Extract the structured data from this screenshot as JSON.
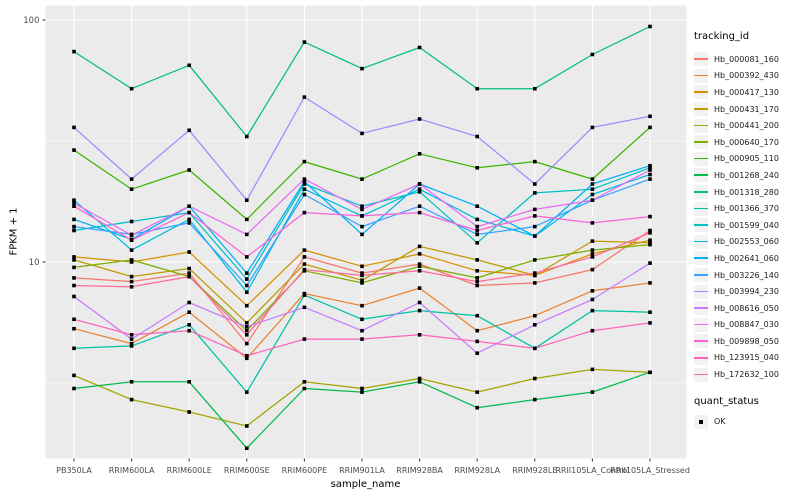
{
  "figure": {
    "legend": {
      "tracking_title": "tracking_id",
      "quant_title": "quant_status",
      "quant_items": [
        {
          "label": "OK",
          "marker": "black-square-icon"
        }
      ]
    },
    "colors": {
      "panel_bg": "#EBEBEB",
      "gridline": "#FFFFFF",
      "legend_key_bg": "#F2F2F2",
      "point": "#000000",
      "axis_tick_text": "#4D4D4D",
      "axis_title_text": "#000000"
    }
  },
  "chart_data": {
    "type": "line",
    "title": "",
    "xlabel": "sample_name",
    "ylabel": "FPKM + 1",
    "y_scale": "log10",
    "ylim": [
      1.55,
      114
    ],
    "y_major_ticks": [
      100,
      10
    ],
    "y_minor_ticks": [
      31.62,
      3.162
    ],
    "grid": true,
    "legend_position": "right",
    "point_marker": "black-square",
    "quant_status_values": [
      "OK"
    ],
    "categories": [
      "PB350LA",
      "RRIM600LA",
      "RRIM600LE",
      "RRIM600SE",
      "RRIM600PE",
      "RRIM901LA",
      "RRIM928BA",
      "RRIM928LA",
      "RRIM928LE",
      "RRII105LA_Control",
      "RRII105LA_Stressed"
    ],
    "series": [
      {
        "name": "Hb_000081_160",
        "color": "#F8766D",
        "values": [
          8.6,
          8.3,
          9.0,
          4.6,
          10.5,
          9.0,
          9.8,
          8.0,
          8.2,
          9.3,
          13.5
        ]
      },
      {
        "name": "Hb_000392_430",
        "color": "#EA8331",
        "values": [
          5.3,
          4.6,
          6.2,
          4.0,
          7.4,
          6.6,
          7.8,
          5.2,
          6.0,
          7.6,
          8.2
        ]
      },
      {
        "name": "Hb_000417_130",
        "color": "#D89000",
        "values": [
          10.5,
          10.0,
          11.0,
          6.6,
          11.2,
          9.6,
          10.8,
          9.2,
          8.8,
          10.8,
          12.3
        ]
      },
      {
        "name": "Hb_000431_170",
        "color": "#C09B00",
        "values": [
          10.2,
          8.7,
          9.4,
          5.6,
          9.8,
          8.4,
          11.6,
          10.2,
          8.8,
          12.2,
          12.0
        ]
      },
      {
        "name": "Hb_000441_200",
        "color": "#A3A500",
        "values": [
          3.4,
          2.7,
          2.4,
          2.1,
          3.2,
          3.0,
          3.3,
          2.9,
          3.3,
          3.6,
          3.5
        ]
      },
      {
        "name": "Hb_000640_170",
        "color": "#7CAE00",
        "values": [
          9.5,
          10.2,
          8.7,
          5.2,
          9.2,
          8.2,
          9.6,
          8.6,
          10.2,
          11.2,
          11.8
        ]
      },
      {
        "name": "Hb_000905_110",
        "color": "#39B600",
        "values": [
          29,
          20,
          24,
          15,
          26,
          22,
          28,
          24.5,
          26,
          22,
          36
        ]
      },
      {
        "name": "Hb_001268_240",
        "color": "#00BB4E",
        "values": [
          3.0,
          3.2,
          3.2,
          1.7,
          3.0,
          2.9,
          3.2,
          2.5,
          2.7,
          2.9,
          3.5
        ]
      },
      {
        "name": "Hb_001318_280",
        "color": "#00BF7D",
        "values": [
          74,
          52,
          65,
          33,
          81,
          63,
          77,
          52,
          52,
          72,
          94
        ]
      },
      {
        "name": "Hb_001366_370",
        "color": "#00C1A3",
        "values": [
          4.4,
          4.5,
          5.5,
          2.9,
          7.3,
          5.8,
          6.3,
          6.0,
          4.4,
          6.3,
          6.2
        ]
      },
      {
        "name": "Hb_001599_040",
        "color": "#00BFC4",
        "values": [
          13.5,
          14.7,
          16,
          8.5,
          21,
          17,
          19.5,
          12,
          19.3,
          20,
          24.5
        ]
      },
      {
        "name": "Hb_002553_060",
        "color": "#00BAE0",
        "values": [
          18,
          11.2,
          15,
          7.5,
          20,
          15.5,
          20,
          15,
          12.8,
          19,
          23
        ]
      },
      {
        "name": "Hb_002641_060",
        "color": "#00B0F6",
        "values": [
          15,
          12.4,
          17,
          9.0,
          21.5,
          13,
          21,
          17,
          12.8,
          21,
          25
        ]
      },
      {
        "name": "Hb_003226_140",
        "color": "#35A2FF",
        "values": [
          14,
          13,
          14.5,
          8.0,
          19,
          14,
          17,
          13,
          14,
          18,
          22
        ]
      },
      {
        "name": "Hb_003994_230",
        "color": "#9590FF",
        "values": [
          36,
          22,
          35,
          18,
          48,
          34,
          39,
          33,
          21,
          36,
          40
        ]
      },
      {
        "name": "Hb_008616_050",
        "color": "#C77CFF",
        "values": [
          7.2,
          4.8,
          6.8,
          5.4,
          6.5,
          5.2,
          6.8,
          4.2,
          5.5,
          7.0,
          9.9
        ]
      },
      {
        "name": "Hb_008847_030",
        "color": "#E76BF3",
        "values": [
          17.5,
          12.9,
          17,
          13,
          22,
          16.5,
          21,
          14,
          16.5,
          18,
          24
        ]
      },
      {
        "name": "Hb_009898_050",
        "color": "#FA62DB",
        "values": [
          17,
          12.3,
          16,
          10.5,
          16,
          15.5,
          16,
          13.5,
          15.5,
          14.5,
          15.4
        ]
      },
      {
        "name": "Hb_123915_040",
        "color": "#FF62BC",
        "values": [
          5.8,
          5.0,
          5.2,
          4.1,
          4.8,
          4.8,
          5.0,
          4.7,
          4.4,
          5.2,
          5.6
        ]
      },
      {
        "name": "Hb_172632_100",
        "color": "#FF6A98",
        "values": [
          8.0,
          7.9,
          8.7,
          5.0,
          9.3,
          8.8,
          9.2,
          8.3,
          9.0,
          10.5,
          13.2
        ]
      }
    ]
  }
}
